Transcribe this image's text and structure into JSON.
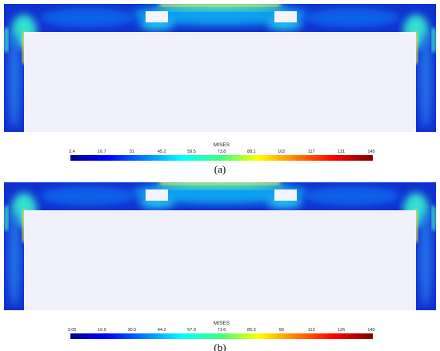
{
  "panels": [
    {
      "colorbar_title": "MISES",
      "ticks": [
        2.4,
        16.7,
        31,
        45.2,
        59.5,
        73.8,
        88.1,
        102,
        117,
        131,
        145
      ],
      "caption": "(a)"
    },
    {
      "colorbar_title": "MISES",
      "ticks": [
        3.05,
        16.9,
        30.5,
        44.2,
        57.9,
        71.6,
        85.3,
        99,
        113,
        126,
        140
      ],
      "caption": "(b)"
    }
  ]
}
